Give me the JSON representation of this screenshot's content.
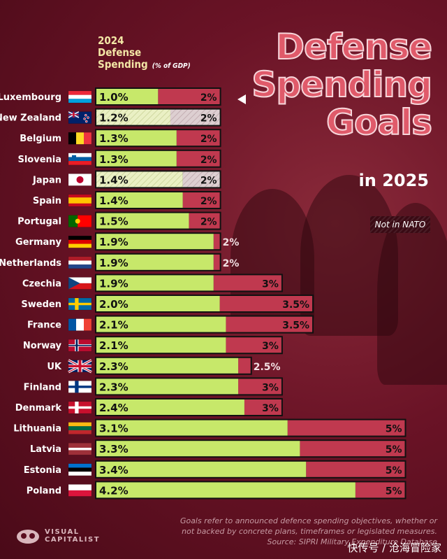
{
  "title": [
    "Defense",
    "Spending",
    "Goals"
  ],
  "subtitle": "in 2025",
  "column_header": {
    "lines": [
      "2024",
      "Defense",
      "Spending"
    ],
    "unit": "(% of GDP)"
  },
  "legend": {
    "not_in_nato": "Not in NATO"
  },
  "footnote": {
    "lines": [
      "Goals refer to announced defence spending objectives, whether or",
      "not backed by concrete plans, timeframes or legislated measures.",
      "Source: SIPRI Military Expenditure Database"
    ]
  },
  "logo": {
    "line1": "VISUAL",
    "line2": "CAPITALIST"
  },
  "watermark": "快传号 / 沧海冒险家",
  "colors": {
    "spending": "#c7e86a",
    "spending_non_nato": "#eef2c8",
    "goal": "#c0394f",
    "goal_non_nato": "#d9cfd0",
    "label": "#f3e7a6"
  },
  "chart_data": {
    "type": "bar",
    "orientation": "horizontal",
    "title": "Defense Spending Goals",
    "subtitle": "in 2025",
    "series": [
      {
        "name": "2024 Defense Spending",
        "unit": "% of GDP"
      },
      {
        "name": "Goal",
        "unit": "% of GDP"
      }
    ],
    "rows": [
      {
        "country": "Luxembourg",
        "flag": "luxembourg",
        "spending": 1.0,
        "spending_label": "1.0%",
        "goal": 2,
        "goal_label": "2%",
        "nato": true
      },
      {
        "country": "New Zealand",
        "flag": "new-zealand",
        "spending": 1.2,
        "spending_label": "1.2%",
        "goal": 2,
        "goal_label": "2%",
        "nato": false
      },
      {
        "country": "Belgium",
        "flag": "belgium",
        "spending": 1.3,
        "spending_label": "1.3%",
        "goal": 2,
        "goal_label": "2%",
        "nato": true
      },
      {
        "country": "Slovenia",
        "flag": "slovenia",
        "spending": 1.3,
        "spending_label": "1.3%",
        "goal": 2,
        "goal_label": "2%",
        "nato": true
      },
      {
        "country": "Japan",
        "flag": "japan",
        "spending": 1.4,
        "spending_label": "1.4%",
        "goal": 2,
        "goal_label": "2%",
        "nato": false
      },
      {
        "country": "Spain",
        "flag": "spain",
        "spending": 1.4,
        "spending_label": "1.4%",
        "goal": 2,
        "goal_label": "2%",
        "nato": true
      },
      {
        "country": "Portugal",
        "flag": "portugal",
        "spending": 1.5,
        "spending_label": "1.5%",
        "goal": 2,
        "goal_label": "2%",
        "nato": true
      },
      {
        "country": "Germany",
        "flag": "germany",
        "spending": 1.9,
        "spending_label": "1.9%",
        "goal": 2,
        "goal_label": "2%",
        "nato": true
      },
      {
        "country": "Netherlands",
        "flag": "netherlands",
        "spending": 1.9,
        "spending_label": "1.9%",
        "goal": 2,
        "goal_label": "2%",
        "nato": true
      },
      {
        "country": "Czechia",
        "flag": "czechia",
        "spending": 1.9,
        "spending_label": "1.9%",
        "goal": 3,
        "goal_label": "3%",
        "nato": true
      },
      {
        "country": "Sweden",
        "flag": "sweden",
        "spending": 2.0,
        "spending_label": "2.0%",
        "goal": 3.5,
        "goal_label": "3.5%",
        "nato": true
      },
      {
        "country": "France",
        "flag": "france",
        "spending": 2.1,
        "spending_label": "2.1%",
        "goal": 3.5,
        "goal_label": "3.5%",
        "nato": true
      },
      {
        "country": "Norway",
        "flag": "norway",
        "spending": 2.1,
        "spending_label": "2.1%",
        "goal": 3,
        "goal_label": "3%",
        "nato": true
      },
      {
        "country": "UK",
        "flag": "uk",
        "spending": 2.3,
        "spending_label": "2.3%",
        "goal": 2.5,
        "goal_label": "2.5%",
        "nato": true
      },
      {
        "country": "Finland",
        "flag": "finland",
        "spending": 2.3,
        "spending_label": "2.3%",
        "goal": 3,
        "goal_label": "3%",
        "nato": true
      },
      {
        "country": "Denmark",
        "flag": "denmark",
        "spending": 2.4,
        "spending_label": "2.4%",
        "goal": 3,
        "goal_label": "3%",
        "nato": true
      },
      {
        "country": "Lithuania",
        "flag": "lithuania",
        "spending": 3.1,
        "spending_label": "3.1%",
        "goal": 5,
        "goal_label": "5%",
        "nato": true
      },
      {
        "country": "Latvia",
        "flag": "latvia",
        "spending": 3.3,
        "spending_label": "3.3%",
        "goal": 5,
        "goal_label": "5%",
        "nato": true
      },
      {
        "country": "Estonia",
        "flag": "estonia",
        "spending": 3.4,
        "spending_label": "3.4%",
        "goal": 5,
        "goal_label": "5%",
        "nato": true
      },
      {
        "country": "Poland",
        "flag": "poland",
        "spending": 4.2,
        "spending_label": "4.2%",
        "goal": 5,
        "goal_label": "5%",
        "nato": true
      }
    ]
  }
}
